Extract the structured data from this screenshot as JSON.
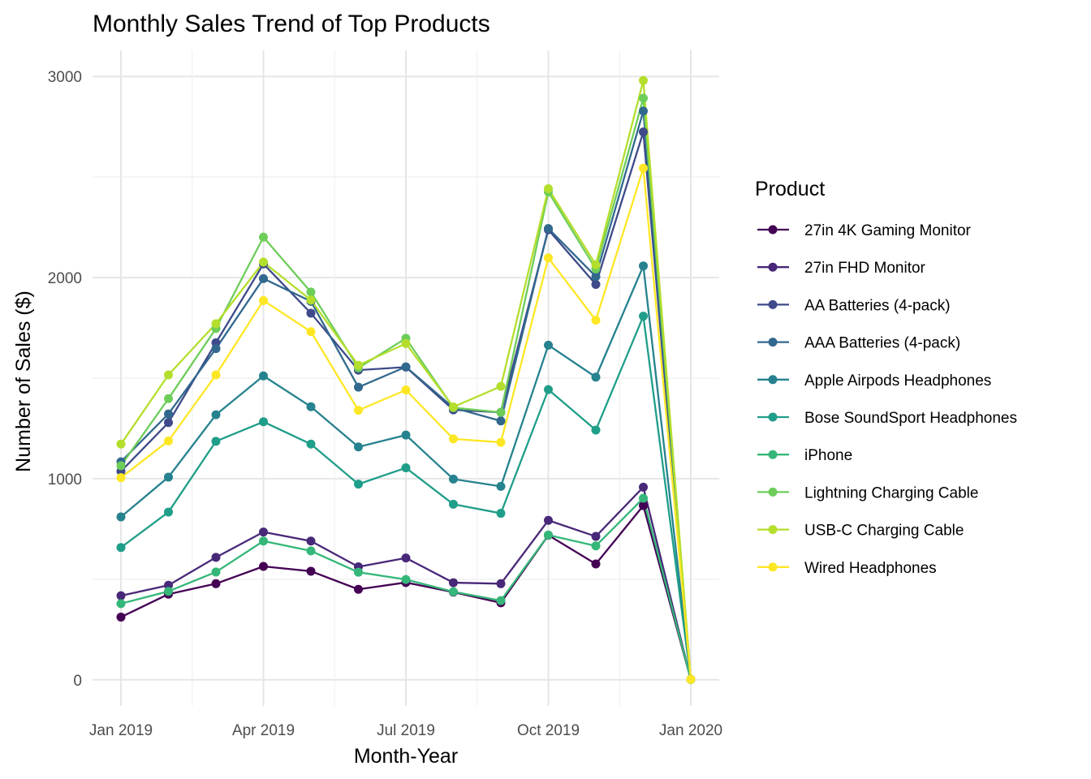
{
  "chart_data": {
    "type": "line",
    "title": "Monthly Sales Trend of Top Products",
    "xlabel": "Month-Year",
    "ylabel": "Number of Sales ($)",
    "legend_title": "Product",
    "legend_position": "right",
    "grid": true,
    "x": [
      "2019-01",
      "2019-02",
      "2019-03",
      "2019-04",
      "2019-05",
      "2019-06",
      "2019-07",
      "2019-08",
      "2019-09",
      "2019-10",
      "2019-11",
      "2019-12",
      "2020-01"
    ],
    "x_ticks": [
      {
        "value": "2019-01",
        "label": "Jan 2019"
      },
      {
        "value": "2019-04",
        "label": "Apr 2019"
      },
      {
        "value": "2019-07",
        "label": "Jul 2019"
      },
      {
        "value": "2019-10",
        "label": "Oct 2019"
      },
      {
        "value": "2020-01",
        "label": "Jan 2020"
      }
    ],
    "y_ticks": [
      {
        "value": 0,
        "label": "0"
      },
      {
        "value": 1000,
        "label": "1000"
      },
      {
        "value": 2000,
        "label": "2000"
      },
      {
        "value": 3000,
        "label": "3000"
      }
    ],
    "ylim": [
      -130,
      3130
    ],
    "series": [
      {
        "name": "27in 4K Gaming Monitor",
        "color": "#440154",
        "values": [
          312,
          426,
          478,
          564,
          540,
          450,
          484,
          436,
          383,
          719,
          576,
          866,
          2
        ]
      },
      {
        "name": "27in FHD Monitor",
        "color": "#482878",
        "values": [
          418,
          470,
          609,
          735,
          690,
          562,
          606,
          483,
          478,
          793,
          713,
          958,
          2
        ]
      },
      {
        "name": "AA Batteries (4-pack)",
        "color": "#3E4A89",
        "values": [
          1037,
          1279,
          1676,
          2068,
          1823,
          1540,
          1555,
          1342,
          1330,
          2238,
          1966,
          2724,
          2
        ]
      },
      {
        "name": "AAA Batteries (4-pack)",
        "color": "#31688E",
        "values": [
          1084,
          1322,
          1647,
          1995,
          1882,
          1455,
          1556,
          1353,
          1287,
          2244,
          2005,
          2828,
          2
        ]
      },
      {
        "name": "Apple Airpods Headphones",
        "color": "#26828E",
        "values": [
          810,
          1008,
          1318,
          1511,
          1358,
          1158,
          1217,
          998,
          962,
          1664,
          1505,
          2058,
          2
        ]
      },
      {
        "name": "Bose SoundSport Headphones",
        "color": "#1F9E89",
        "values": [
          658,
          834,
          1186,
          1283,
          1172,
          973,
          1054,
          873,
          828,
          1443,
          1242,
          1808,
          2
        ]
      },
      {
        "name": "iPhone",
        "color": "#35B779",
        "values": [
          379,
          440,
          536,
          690,
          641,
          535,
          499,
          438,
          394,
          720,
          666,
          903,
          2
        ]
      },
      {
        "name": "Lightning Charging Cable",
        "color": "#6DCD59",
        "values": [
          1065,
          1398,
          1747,
          2201,
          1928,
          1551,
          1698,
          1353,
          1330,
          2426,
          2043,
          2892,
          2
        ]
      },
      {
        "name": "USB-C Charging Cable",
        "color": "#B4DE2C",
        "values": [
          1172,
          1516,
          1771,
          2077,
          1888,
          1564,
          1672,
          1357,
          1459,
          2442,
          2064,
          2980,
          2
        ]
      },
      {
        "name": "Wired Headphones",
        "color": "#FDE725",
        "values": [
          1005,
          1188,
          1516,
          1886,
          1731,
          1340,
          1441,
          1198,
          1181,
          2098,
          1788,
          2544,
          2
        ]
      }
    ]
  }
}
